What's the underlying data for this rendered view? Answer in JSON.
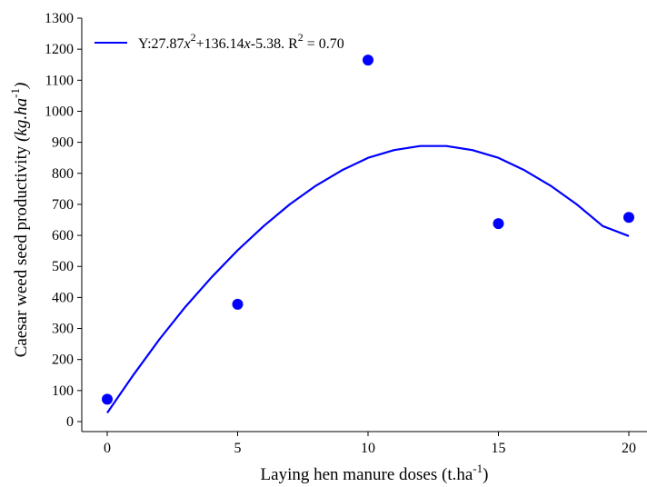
{
  "chart_data": {
    "type": "scatter",
    "xlabel_main": "Laying hen manure doses (t.ha",
    "xlabel_sup": "-1",
    "xlabel_end": ")",
    "ylabel_main": "Caesar weed seed productivity ",
    "ylabel_italic": "(kg.ha",
    "ylabel_sup": "-1",
    "ylabel_end": ")",
    "xlim": [
      0,
      20
    ],
    "ylim": [
      0,
      1300
    ],
    "x_ticks": [
      "0",
      "5",
      "10",
      "15",
      "20"
    ],
    "y_ticks": [
      "0",
      "100",
      "200",
      "300",
      "400",
      "500",
      "600",
      "700",
      "800",
      "900",
      "1000",
      "1100",
      "1200",
      "1300"
    ],
    "grid": false,
    "legend_position": "top-left",
    "series": [
      {
        "kind": "points",
        "color": "#0000ff",
        "x": [
          0,
          5,
          10,
          15,
          20
        ],
        "y": [
          72,
          378,
          1165,
          638,
          658
        ]
      },
      {
        "kind": "fit-line",
        "color": "#0000ff",
        "x": [
          0,
          1,
          2,
          3,
          4,
          5,
          6,
          7,
          8,
          9,
          10,
          11,
          12,
          13,
          14,
          15,
          16,
          17,
          18,
          19,
          20
        ],
        "y": [
          28,
          150,
          265,
          370,
          465,
          552,
          630,
          700,
          760,
          810,
          850,
          875,
          888,
          888,
          875,
          850,
          810,
          760,
          700,
          630,
          598
        ]
      }
    ],
    "legend": {
      "text_y": "Y:27.87",
      "text_x2": "x",
      "text_sup2": "2",
      "text_mid": "+136.14",
      "text_x": "x",
      "text_end": "-5.38. R",
      "text_r_sup": "2",
      "text_r_val": " = 0.70"
    }
  }
}
